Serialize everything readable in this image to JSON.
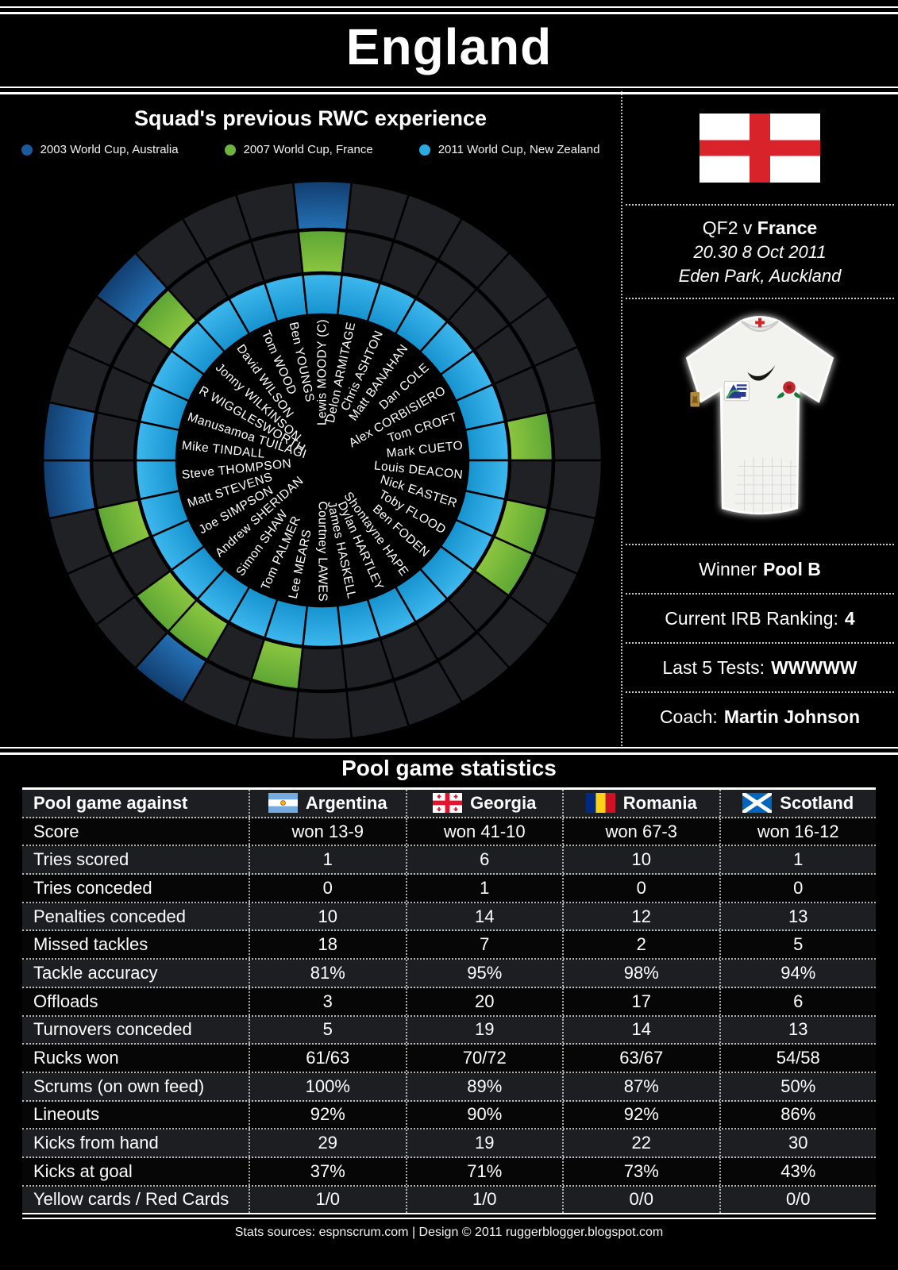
{
  "title": "England",
  "squad_chart": {
    "heading": "Squad's previous RWC experience",
    "legend": [
      {
        "label": "2003 World Cup, Australia",
        "color": "#1b5a9b"
      },
      {
        "label": "2007 World Cup, France",
        "color": "#6cb33f"
      },
      {
        "label": "2011 World Cup, New Zealand",
        "color": "#29abe2"
      }
    ],
    "ring_dark_color": "#1f2125",
    "players": [
      {
        "name": "Lewis MOODY (C)",
        "rwc": [
          1,
          1,
          1
        ]
      },
      {
        "name": "Delon ARMITAGE",
        "rwc": [
          0,
          0,
          1
        ]
      },
      {
        "name": "Chris ASHTON",
        "rwc": [
          0,
          0,
          1
        ]
      },
      {
        "name": "Matt BANAHAN",
        "rwc": [
          0,
          0,
          1
        ]
      },
      {
        "name": "Dan COLE",
        "rwc": [
          0,
          0,
          1
        ]
      },
      {
        "name": "Alex CORBISIERO",
        "rwc": [
          0,
          0,
          1
        ]
      },
      {
        "name": "Tom CROFT",
        "rwc": [
          0,
          0,
          1
        ]
      },
      {
        "name": "Mark CUETO",
        "rwc": [
          0,
          1,
          1
        ]
      },
      {
        "name": "Louis DEACON",
        "rwc": [
          0,
          0,
          1
        ]
      },
      {
        "name": "Nick EASTER",
        "rwc": [
          0,
          1,
          1
        ]
      },
      {
        "name": "Toby FLOOD",
        "rwc": [
          0,
          1,
          1
        ]
      },
      {
        "name": "Ben FODEN",
        "rwc": [
          0,
          0,
          1
        ]
      },
      {
        "name": "Shontayne HAPE",
        "rwc": [
          0,
          0,
          1
        ]
      },
      {
        "name": "Dylan HARTLEY",
        "rwc": [
          0,
          0,
          1
        ]
      },
      {
        "name": "James HASKELL",
        "rwc": [
          0,
          0,
          1
        ]
      },
      {
        "name": "Courtney LAWES",
        "rwc": [
          0,
          0,
          1
        ]
      },
      {
        "name": "Lee MEARS",
        "rwc": [
          0,
          1,
          1
        ]
      },
      {
        "name": "Tom PALMER",
        "rwc": [
          0,
          0,
          1
        ]
      },
      {
        "name": "Simon SHAW",
        "rwc": [
          1,
          1,
          1
        ]
      },
      {
        "name": "Andrew SHERIDAN",
        "rwc": [
          0,
          1,
          1
        ]
      },
      {
        "name": "Joe SIMPSON",
        "rwc": [
          0,
          0,
          1
        ]
      },
      {
        "name": "Matt STEVENS",
        "rwc": [
          0,
          1,
          1
        ]
      },
      {
        "name": "Steve THOMPSON",
        "rwc": [
          1,
          0,
          1
        ]
      },
      {
        "name": "Mike TINDALL",
        "rwc": [
          1,
          0,
          1
        ]
      },
      {
        "name": "Manusamoa TUILAGI",
        "rwc": [
          0,
          0,
          1
        ]
      },
      {
        "name": "R WIGGLESWORTH",
        "rwc": [
          0,
          0,
          1
        ]
      },
      {
        "name": "Jonny WILKINSON",
        "rwc": [
          1,
          1,
          1
        ]
      },
      {
        "name": "David WILSON",
        "rwc": [
          0,
          0,
          1
        ]
      },
      {
        "name": "Tom WOOD",
        "rwc": [
          0,
          0,
          1
        ]
      },
      {
        "name": "Ben YOUNGS",
        "rwc": [
          0,
          0,
          1
        ]
      }
    ]
  },
  "match_panel": {
    "fixture_prefix": "QF2 v",
    "opponent": "France",
    "kickoff": "20.30 8 Oct 2011",
    "venue": "Eden Park, Auckland",
    "winner_label": "Winner",
    "winner_value": "Pool B",
    "ranking_label": "Current IRB Ranking:",
    "ranking_value": "4",
    "tests_label": "Last 5 Tests:",
    "tests_value": "WWWWW",
    "coach_label": "Coach:",
    "coach_value": "Martin Johnson"
  },
  "stats_table": {
    "title": "Pool game statistics",
    "header_label": "Pool game against",
    "opponents": [
      {
        "label": "Argentina",
        "flag": "argentina"
      },
      {
        "label": "Georgia",
        "flag": "georgia"
      },
      {
        "label": "Romania",
        "flag": "romania"
      },
      {
        "label": "Scotland",
        "flag": "scotland"
      }
    ],
    "rows": [
      {
        "label": "Score",
        "values": [
          "won 13-9",
          "won 41-10",
          "won 67-3",
          "won 16-12"
        ]
      },
      {
        "label": "Tries scored",
        "values": [
          "1",
          "6",
          "10",
          "1"
        ]
      },
      {
        "label": "Tries conceded",
        "values": [
          "0",
          "1",
          "0",
          "0"
        ]
      },
      {
        "label": "Penalties conceded",
        "values": [
          "10",
          "14",
          "12",
          "13"
        ]
      },
      {
        "label": "Missed tackles",
        "values": [
          "18",
          "7",
          "2",
          "5"
        ]
      },
      {
        "label": "Tackle accuracy",
        "values": [
          "81%",
          "95%",
          "98%",
          "94%"
        ]
      },
      {
        "label": "Offloads",
        "values": [
          "3",
          "20",
          "17",
          "6"
        ]
      },
      {
        "label": "Turnovers conceded",
        "values": [
          "5",
          "19",
          "14",
          "13"
        ]
      },
      {
        "label": "Rucks won",
        "values": [
          "61/63",
          "70/72",
          "63/67",
          "54/58"
        ]
      },
      {
        "label": "Scrums (on own feed)",
        "values": [
          "100%",
          "89%",
          "87%",
          "50%"
        ]
      },
      {
        "label": "Lineouts",
        "values": [
          "92%",
          "90%",
          "92%",
          "86%"
        ]
      },
      {
        "label": "Kicks from hand",
        "values": [
          "29",
          "19",
          "22",
          "30"
        ]
      },
      {
        "label": "Kicks at goal",
        "values": [
          "37%",
          "71%",
          "73%",
          "43%"
        ]
      },
      {
        "label": "Yellow cards / Red Cards",
        "values": [
          "1/0",
          "1/0",
          "0/0",
          "0/0"
        ]
      }
    ]
  },
  "footer": "Stats sources: espnscrum.com | Design © 2011 ruggerblogger.blogspot.com",
  "chart_data": [
    {
      "type": "heatmap",
      "title": "Squad's previous RWC experience",
      "x": [
        "2003 World Cup, Australia",
        "2007 World Cup, France",
        "2011 World Cup, New Zealand"
      ],
      "categories": [
        "Lewis MOODY (C)",
        "Delon ARMITAGE",
        "Chris ASHTON",
        "Matt BANAHAN",
        "Dan COLE",
        "Alex CORBISIERO",
        "Tom CROFT",
        "Mark CUETO",
        "Louis DEACON",
        "Nick EASTER",
        "Toby FLOOD",
        "Ben FODEN",
        "Shontayne HAPE",
        "Dylan HARTLEY",
        "James HASKELL",
        "Courtney LAWES",
        "Lee MEARS",
        "Tom PALMER",
        "Simon SHAW",
        "Andrew SHERIDAN",
        "Joe SIMPSON",
        "Matt STEVENS",
        "Steve THOMPSON",
        "Mike TINDALL",
        "Manusamoa TUILAGI",
        "R WIGGLESWORTH",
        "Jonny WILKINSON",
        "David WILSON",
        "Tom WOOD",
        "Ben YOUNGS"
      ],
      "values": [
        [
          1,
          1,
          1
        ],
        [
          0,
          0,
          1
        ],
        [
          0,
          0,
          1
        ],
        [
          0,
          0,
          1
        ],
        [
          0,
          0,
          1
        ],
        [
          0,
          0,
          1
        ],
        [
          0,
          0,
          1
        ],
        [
          0,
          1,
          1
        ],
        [
          0,
          0,
          1
        ],
        [
          0,
          1,
          1
        ],
        [
          0,
          1,
          1
        ],
        [
          0,
          0,
          1
        ],
        [
          0,
          0,
          1
        ],
        [
          0,
          0,
          1
        ],
        [
          0,
          0,
          1
        ],
        [
          0,
          0,
          1
        ],
        [
          0,
          1,
          1
        ],
        [
          0,
          0,
          1
        ],
        [
          1,
          1,
          1
        ],
        [
          0,
          1,
          1
        ],
        [
          0,
          0,
          1
        ],
        [
          0,
          1,
          1
        ],
        [
          1,
          0,
          1
        ],
        [
          1,
          0,
          1
        ],
        [
          0,
          0,
          1
        ],
        [
          0,
          0,
          1
        ],
        [
          1,
          1,
          1
        ],
        [
          0,
          0,
          1
        ],
        [
          0,
          0,
          1
        ],
        [
          0,
          0,
          1
        ]
      ],
      "layout": "radial-rings, 30 wedges, outer ring 2003, middle ring 2007, inner ring 2011, legend top"
    },
    {
      "type": "table",
      "title": "Pool game statistics",
      "columns": [
        "Argentina",
        "Georgia",
        "Romania",
        "Scotland"
      ],
      "rows": [
        [
          "Score",
          "won 13-9",
          "won 41-10",
          "won 67-3",
          "won 16-12"
        ],
        [
          "Tries scored",
          1,
          6,
          10,
          1
        ],
        [
          "Tries conceded",
          0,
          1,
          0,
          0
        ],
        [
          "Penalties conceded",
          10,
          14,
          12,
          13
        ],
        [
          "Missed tackles",
          18,
          7,
          2,
          5
        ],
        [
          "Tackle accuracy",
          "81%",
          "95%",
          "98%",
          "94%"
        ],
        [
          "Offloads",
          3,
          20,
          17,
          6
        ],
        [
          "Turnovers conceded",
          5,
          19,
          14,
          13
        ],
        [
          "Rucks won",
          "61/63",
          "70/72",
          "63/67",
          "54/58"
        ],
        [
          "Scrums (on own feed)",
          "100%",
          "89%",
          "87%",
          "50%"
        ],
        [
          "Lineouts",
          "92%",
          "90%",
          "92%",
          "86%"
        ],
        [
          "Kicks from hand",
          29,
          19,
          22,
          30
        ],
        [
          "Kicks at goal",
          "37%",
          "71%",
          "73%",
          "43%"
        ],
        [
          "Yellow cards / Red Cards",
          "1/0",
          "1/0",
          "0/0",
          "0/0"
        ]
      ]
    }
  ]
}
